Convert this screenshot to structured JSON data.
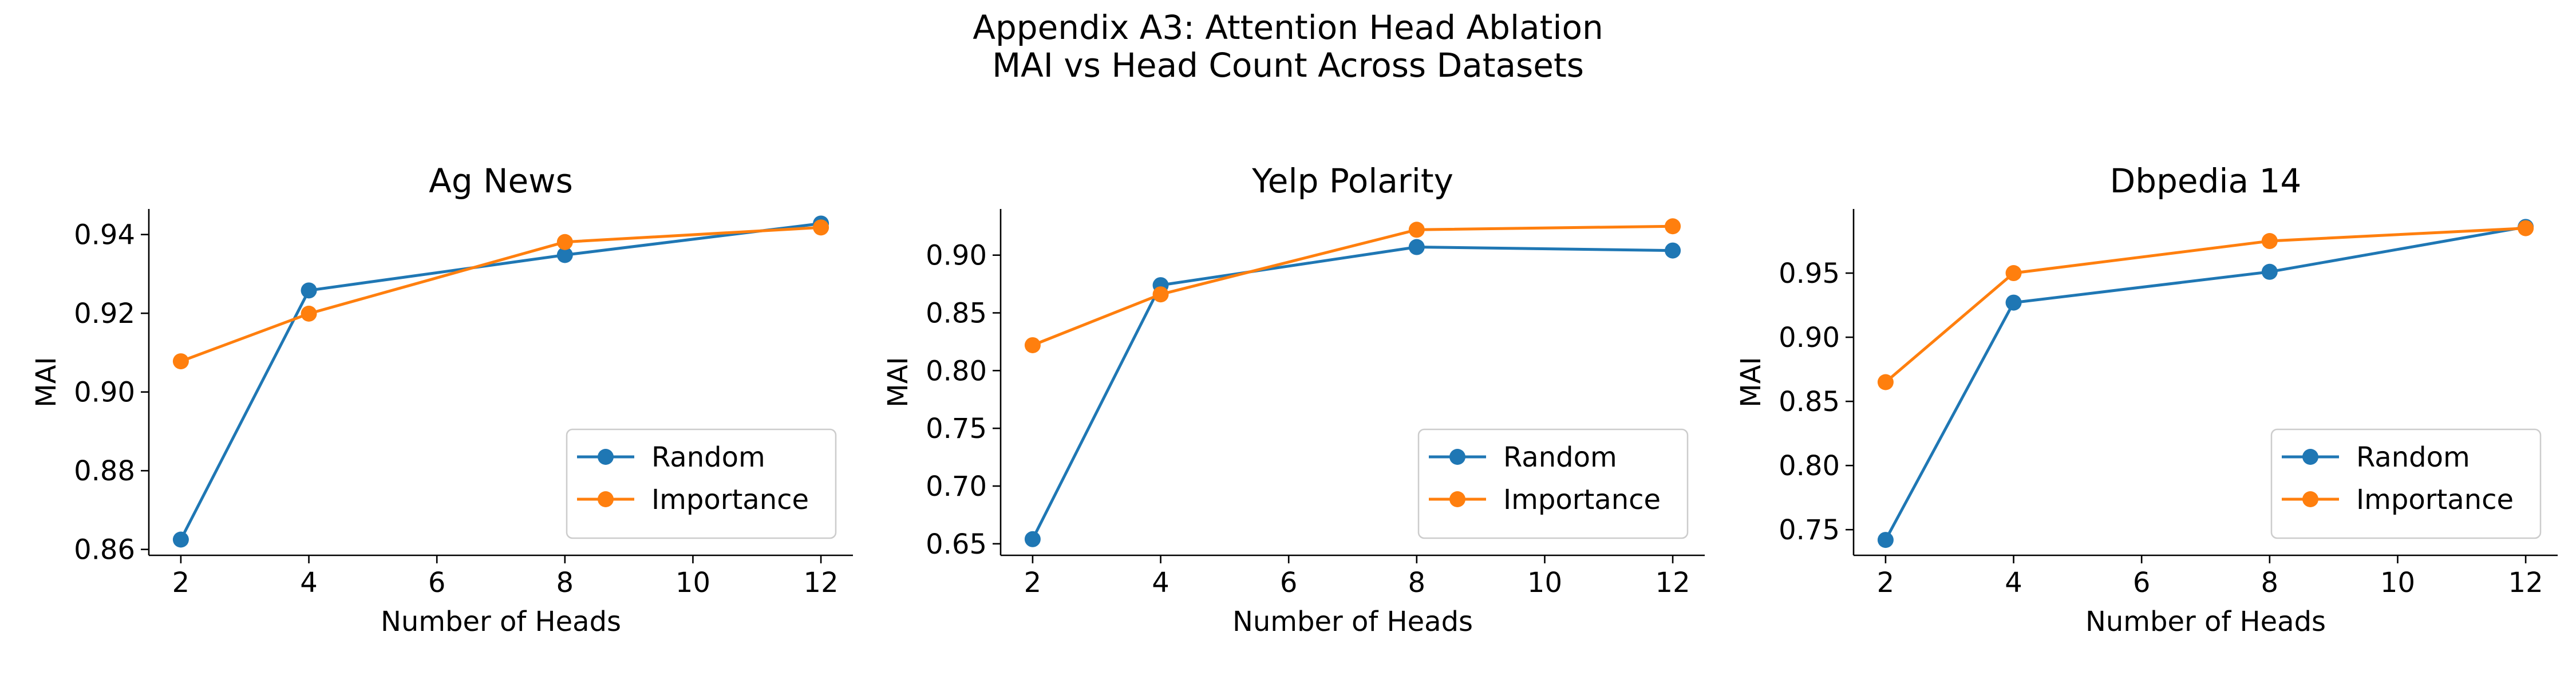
{
  "figure": {
    "title_line1": "Appendix A3: Attention Head Ablation",
    "title_line2": "MAI vs Head Count Across Datasets"
  },
  "colors": {
    "random": "#1f77b4",
    "importance": "#ff7f0e"
  },
  "chart_data": [
    {
      "type": "line",
      "title": "Ag News",
      "xlabel": "Number of Heads",
      "ylabel": "MAI",
      "x": [
        2,
        4,
        8,
        12
      ],
      "xlim": [
        1.5,
        12.5
      ],
      "ylim": [
        0.8585,
        0.9465
      ],
      "xticks": [
        2,
        4,
        6,
        8,
        10,
        12
      ],
      "yticks": [
        0.86,
        0.88,
        0.9,
        0.92,
        0.94
      ],
      "ytick_labels": [
        "0.86",
        "0.88",
        "0.90",
        "0.92",
        "0.94"
      ],
      "legend": "lower-right",
      "series": [
        {
          "name": "Random",
          "values": [
            0.8625,
            0.9258,
            0.9348,
            0.9428
          ]
        },
        {
          "name": "Importance",
          "values": [
            0.9078,
            0.9199,
            0.9381,
            0.9418
          ]
        }
      ]
    },
    {
      "type": "line",
      "title": "Yelp Polarity",
      "xlabel": "Number of Heads",
      "ylabel": "MAI",
      "x": [
        2,
        4,
        8,
        12
      ],
      "xlim": [
        1.5,
        12.5
      ],
      "ylim": [
        0.64,
        0.94
      ],
      "xticks": [
        2,
        4,
        6,
        8,
        10,
        12
      ],
      "yticks": [
        0.65,
        0.7,
        0.75,
        0.8,
        0.85,
        0.9
      ],
      "ytick_labels": [
        "0.65",
        "0.70",
        "0.75",
        "0.80",
        "0.85",
        "0.90"
      ],
      "legend": "lower-right",
      "series": [
        {
          "name": "Random",
          "values": [
            0.654,
            0.874,
            0.907,
            0.904
          ]
        },
        {
          "name": "Importance",
          "values": [
            0.822,
            0.866,
            0.922,
            0.925
          ]
        }
      ]
    },
    {
      "type": "line",
      "title": "Dbpedia 14",
      "xlabel": "Number of Heads",
      "ylabel": "MAI",
      "x": [
        2,
        4,
        8,
        12
      ],
      "xlim": [
        1.5,
        12.5
      ],
      "ylim": [
        0.73,
        1.0
      ],
      "xticks": [
        2,
        4,
        6,
        8,
        10,
        12
      ],
      "yticks": [
        0.75,
        0.8,
        0.85,
        0.9,
        0.95
      ],
      "ytick_labels": [
        "0.75",
        "0.80",
        "0.85",
        "0.90",
        "0.95"
      ],
      "legend": "lower-right",
      "series": [
        {
          "name": "Random",
          "values": [
            0.742,
            0.927,
            0.951,
            0.986
          ]
        },
        {
          "name": "Importance",
          "values": [
            0.865,
            0.95,
            0.975,
            0.985
          ]
        }
      ]
    }
  ]
}
